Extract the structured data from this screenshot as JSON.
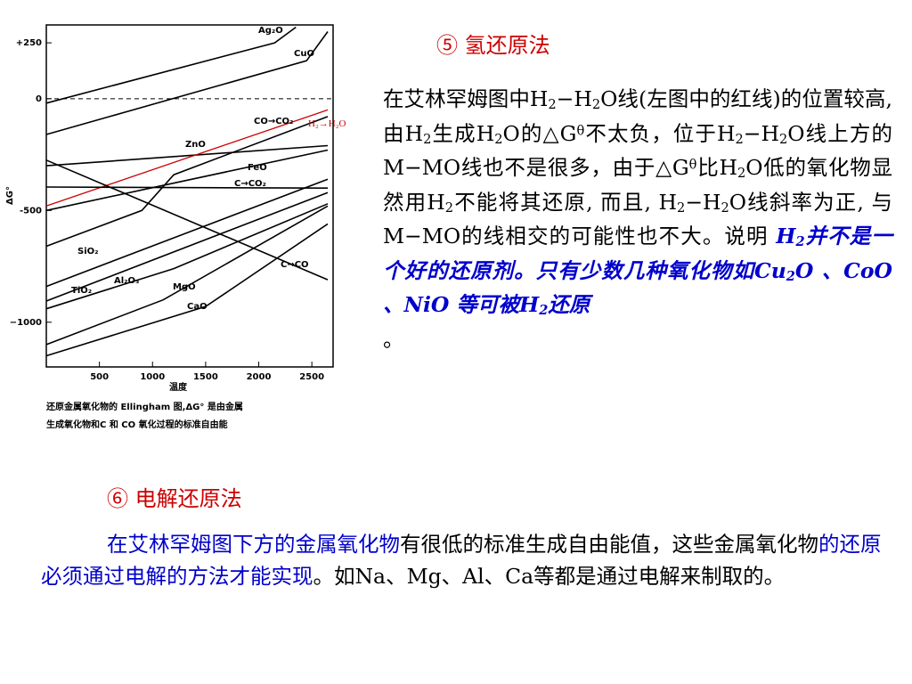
{
  "chart_data": {
    "type": "line",
    "xlabel": "温度",
    "ylabel": "ΔG°",
    "xlim": [
      0,
      2700
    ],
    "ylim": [
      -1200,
      330
    ],
    "x_ticks": [
      {
        "v": 500,
        "t": "500"
      },
      {
        "v": 1000,
        "t": "1000"
      },
      {
        "v": 1500,
        "t": "1500"
      },
      {
        "v": 2000,
        "t": "2000"
      },
      {
        "v": 2500,
        "t": "2500"
      }
    ],
    "y_ticks": [
      {
        "v": 250,
        "t": "+250"
      },
      {
        "v": 0,
        "t": "0"
      },
      {
        "v": -500,
        "t": "-500"
      },
      {
        "v": -1000,
        "t": "−1000"
      }
    ],
    "series": [
      {
        "name": "Ag₂O",
        "color": "#000000",
        "points": [
          [
            0,
            -20
          ],
          [
            2150,
            250
          ],
          [
            2350,
            320
          ]
        ]
      },
      {
        "name": "CuO",
        "color": "#000000",
        "points": [
          [
            0,
            -160
          ],
          [
            2450,
            170
          ],
          [
            2650,
            300
          ]
        ]
      },
      {
        "name": "CO→CO₂",
        "color": "#000000",
        "points": [
          [
            0,
            -300
          ],
          [
            2650,
            -210
          ]
        ]
      },
      {
        "name": "H₂→H₂O",
        "color": "#cc0000",
        "points": [
          [
            0,
            -480
          ],
          [
            2650,
            -50
          ]
        ]
      },
      {
        "name": "ZnO",
        "color": "#000000",
        "points": [
          [
            0,
            -660
          ],
          [
            900,
            -500
          ],
          [
            1200,
            -340
          ],
          [
            2650,
            -80
          ]
        ]
      },
      {
        "name": "FeO",
        "color": "#000000",
        "points": [
          [
            0,
            -500
          ],
          [
            2650,
            -230
          ]
        ]
      },
      {
        "name": "C→CO₂",
        "color": "#000000",
        "points": [
          [
            0,
            -395
          ],
          [
            2650,
            -400
          ]
        ]
      },
      {
        "name": "C→CO",
        "color": "#000000",
        "points": [
          [
            0,
            -275
          ],
          [
            2650,
            -810
          ]
        ]
      },
      {
        "name": "SiO₂",
        "color": "#000000",
        "points": [
          [
            0,
            -840
          ],
          [
            2650,
            -360
          ]
        ]
      },
      {
        "name": "Al₂O₃",
        "color": "#000000",
        "points": [
          [
            0,
            -905
          ],
          [
            2650,
            -420
          ]
        ]
      },
      {
        "name": "TiO₂",
        "color": "#000000",
        "points": [
          [
            0,
            -940
          ],
          [
            1200,
            -760
          ],
          [
            2650,
            -470
          ]
        ]
      },
      {
        "name": "MgO",
        "color": "#000000",
        "points": [
          [
            0,
            -1100
          ],
          [
            1100,
            -900
          ],
          [
            2650,
            -480
          ]
        ]
      },
      {
        "name": "CaO",
        "color": "#000000",
        "points": [
          [
            0,
            -1150
          ],
          [
            1500,
            -930
          ],
          [
            2650,
            -560
          ]
        ]
      }
    ]
  },
  "caption": {
    "line1": "还原金属氧化物的 Ellingham 图,ΔG° 是由金属",
    "line2": "生成氧化物和C 和 CO 氧化过程的标准自由能"
  },
  "heading_5": "⑤  氢还原法",
  "heading_6": "⑥  电解还原法",
  "right_text": {
    "p1": "在艾林罕姆图中H",
    "p2": "2",
    "p3": "−H",
    "p4": "2",
    "p5": "O线(左图中的红线)的位置较高, 由H",
    "p6": "2",
    "p7": "生成H",
    "p8": "2",
    "p9": "O的△G",
    "p10": "θ",
    "p11": "不太负，位于H",
    "p12": "2",
    "p13": "−H",
    "p14": "2",
    "p15": "O线上方的M−MO线也不是很多，由于△G",
    "p16": "θ",
    "p17": "比H",
    "p18": "2",
    "p19": "O低的氧化物显然用H",
    "p20": "2",
    "p21": "不能将其还原, 而且, H",
    "p22": "2",
    "p23": "−H",
    "p24": "2",
    "p25": "O线斜率为正, 与M−MO的线相交的可能性也不大。说明 ",
    "e1": "H",
    "e2": "2",
    "e3": "并不是一个好的还原剂。只有少数几种氧化物如Cu",
    "e4": "2",
    "e5": "O 、CoO 、NiO 等可被H",
    "e6": "2",
    "e7": "还原",
    "tail": "。"
  },
  "bottom_text": {
    "blue1": "在艾林罕姆图下方的金属氧化物",
    "plain1": "有很低的标准生成自由能值，这些金属氧化物",
    "blue2": "的还原必须通过电解的方法才能实现",
    "plain2": "。如Na、Mg、Al、Ca等都是通过电解来制取的。"
  }
}
